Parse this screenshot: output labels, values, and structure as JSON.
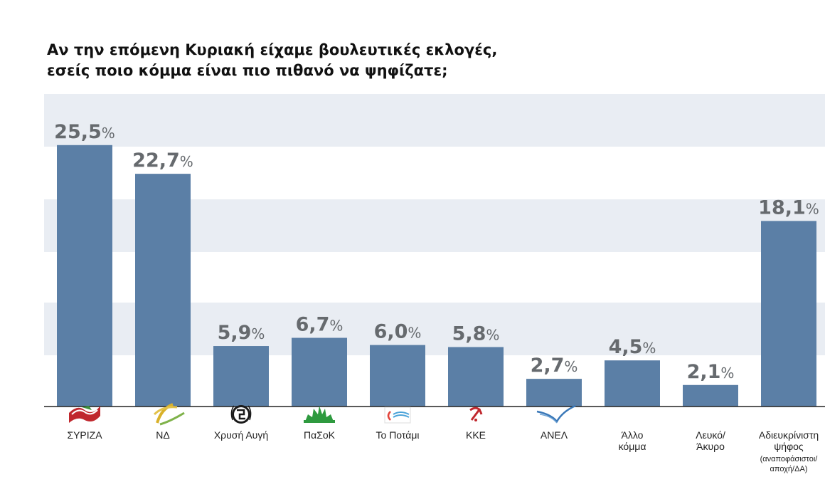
{
  "title_line1": "Αν την επόμενη Κυριακή είχαμε βουλευτικές εκλογές,",
  "title_line2": "εσείς ποιο κόμμα είναι πιο πιθανό να ψηφίζατε;",
  "colors": {
    "bar": "#5b7fa6",
    "band": "#e9edf3",
    "value_text": "#666a6e"
  },
  "chart_data": {
    "type": "bar",
    "title": "Αν την επόμενη Κυριακή είχαμε βουλευτικές εκλογές, εσείς ποιο κόμμα είναι πιο πιθανό να ψηφίζατε;",
    "categories": [
      "ΣΥΡΙΖΑ",
      "ΝΔ",
      "Χρυσή Αυγή",
      "ΠαΣοΚ",
      "Το Ποτάμι",
      "ΚΚΕ",
      "ΑΝΕΛ",
      "Άλλο κόμμα",
      "Λευκό/ Άκυρο",
      "Αδιευκρίνιστη ψήφος (αναποφάσιστοι/ αποχή/ΔΑ)"
    ],
    "category_lines": [
      [
        "ΣΥΡΙΖΑ"
      ],
      [
        "ΝΔ"
      ],
      [
        "Χρυσή Αυγή"
      ],
      [
        "ΠαΣοΚ"
      ],
      [
        "Το Ποτάμι"
      ],
      [
        "ΚΚΕ"
      ],
      [
        "ΑΝΕΛ"
      ],
      [
        "Άλλο",
        "κόμμα"
      ],
      [
        "Λευκό/",
        "Άκυρο"
      ],
      [
        "Αδιευκρίνιστη",
        "ψήφος",
        "(αναποφάσιστοι/",
        "αποχή/ΔΑ)"
      ]
    ],
    "values": [
      25.5,
      22.7,
      5.9,
      6.7,
      6.0,
      5.8,
      2.7,
      4.5,
      2.1,
      18.1
    ],
    "value_labels": [
      "25,5",
      "22,7",
      "5,9",
      "6,7",
      "6,0",
      "5,8",
      "2,7",
      "4,5",
      "2,1",
      "18,1"
    ],
    "unit": "%",
    "logos": [
      "syriza-logo",
      "nd-logo",
      "golden-dawn-logo",
      "pasok-logo",
      "potami-logo",
      "kke-logo",
      "anel-logo",
      "",
      "",
      ""
    ],
    "ylim": [
      0,
      30
    ],
    "grid": "alternating-bands",
    "legend": "none"
  }
}
